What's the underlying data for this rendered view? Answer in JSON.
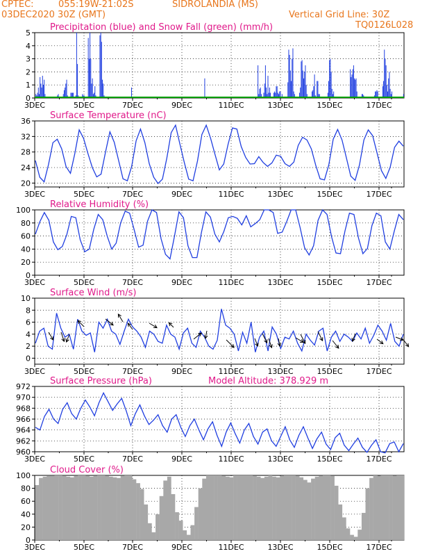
{
  "header": {
    "source": "CPTEC:",
    "coords": "055:19W-21:02S",
    "location": "SIDROLANDIA (MS)",
    "run": "03DEC2020 30Z (GMT)",
    "vgrid": "Vertical Grid Line: 30Z",
    "code": "TQ0126L028"
  },
  "colors": {
    "header": "#e8761c",
    "title": "#e0198a",
    "line": "#1f3ee0",
    "snow": "#00a000",
    "cloud": "#a8a8a8",
    "grid": "#000000"
  },
  "chart_data": [
    {
      "id": "precip",
      "type": "bar",
      "title": "Precipitation (blue) and Snow Fall (green) (mm/h)",
      "ylim": [
        0,
        5
      ],
      "yticks": [
        0,
        1,
        2,
        3,
        4,
        5
      ],
      "xlabels": [
        "3DEC",
        "5DEC",
        "7DEC",
        "9DEC",
        "11DEC",
        "13DEC",
        "15DEC",
        "17DEC"
      ],
      "snow": 0,
      "values": [
        0,
        0.3,
        0.2,
        0.4,
        0.8,
        0.3,
        1.6,
        1.1,
        0.8,
        1.7,
        1.0,
        1.4,
        0.3,
        0,
        0,
        0,
        0,
        0,
        0,
        0,
        0,
        0,
        0,
        0,
        0,
        0,
        0,
        0.2,
        0.3,
        0,
        0,
        0.1,
        0,
        0,
        0.3,
        0.6,
        0.8,
        1.1,
        1.4,
        0.2,
        0.1,
        0,
        0.1,
        0.4,
        0.4,
        0.4,
        0.4,
        0.1,
        0.1,
        0.2,
        5.0,
        2.6,
        0.2,
        0,
        0,
        0,
        0,
        0.3,
        0.2,
        0.2,
        0,
        0,
        0,
        0,
        4.6,
        3.0,
        5.0,
        3.0,
        1.1,
        1.5,
        0.3,
        0.4,
        0.9,
        0.2,
        0,
        0,
        0,
        0,
        4.8,
        5.0,
        4.3,
        1.4,
        1.1,
        0.2,
        0,
        0,
        0,
        0,
        0,
        0,
        0,
        0,
        0,
        0,
        0,
        0,
        0,
        0,
        0,
        0,
        0,
        0,
        0,
        0,
        0,
        0,
        0,
        0,
        0,
        0,
        0,
        0,
        0,
        0,
        0,
        0,
        0.8,
        0,
        0,
        0,
        0,
        0,
        0,
        0,
        0,
        0,
        0,
        0,
        0,
        0,
        0,
        0,
        0,
        0,
        0,
        0,
        0,
        0,
        0,
        0,
        0,
        0,
        0,
        0,
        0,
        0,
        0,
        0,
        0,
        0,
        0,
        0,
        0,
        0,
        0,
        0,
        0,
        0,
        0,
        0,
        0,
        0,
        0,
        0,
        0,
        0,
        0,
        0,
        0,
        0,
        0,
        0,
        0,
        0,
        0,
        0,
        0,
        0,
        0,
        0,
        0,
        0,
        0,
        0,
        0,
        0,
        0,
        0,
        0,
        0,
        0,
        0,
        0,
        0,
        0,
        0,
        0,
        0,
        0,
        0,
        0,
        0,
        0,
        0,
        1.5,
        0,
        0,
        0,
        0,
        0,
        0,
        0,
        0,
        0,
        0,
        0,
        0,
        0,
        0,
        0,
        0,
        0,
        0,
        0,
        0,
        0,
        0,
        0,
        0,
        0,
        0,
        0,
        0,
        0,
        0,
        0,
        0,
        0,
        0,
        0,
        0,
        0,
        0,
        0,
        0,
        0,
        0,
        0,
        0,
        0,
        0,
        0,
        0,
        0,
        0,
        0,
        0,
        0,
        0,
        0,
        0,
        0,
        0,
        0,
        0,
        0,
        0,
        0,
        2.5,
        0.3,
        0.7,
        0.8,
        0.3,
        0,
        0,
        0.4,
        1.1,
        2.5,
        0.8,
        0.3,
        1.7,
        0.4,
        0.8,
        0.4,
        0.1,
        0,
        0,
        0.4,
        0.5,
        0.4,
        0.9,
        0.9,
        0.4,
        0.3,
        0.5,
        0.5,
        0,
        0.3,
        0,
        0,
        0,
        0,
        0,
        0,
        1.2,
        3.7,
        3.3,
        2.1,
        1.3,
        3.0,
        3.8,
        0.5,
        0.3,
        0.1,
        0,
        0,
        0,
        0,
        0.4,
        0.8,
        2.8,
        2.9,
        2.1,
        1.5,
        2.0,
        2.5,
        1.0,
        0.3,
        0.1,
        0,
        0,
        0,
        0,
        0.5,
        0.6,
        0.9,
        1.8,
        0.2,
        0.1,
        1.3,
        1.3,
        0.3,
        0.3,
        0.1,
        0,
        0,
        0,
        0,
        0,
        0,
        0,
        0,
        0.4,
        1.3,
        2.9,
        3.0,
        2.0,
        0.7,
        0.3,
        0.5,
        0.1,
        0,
        0,
        0,
        0,
        0,
        0,
        0,
        0,
        0,
        0,
        0,
        0,
        0,
        0,
        0,
        0,
        0,
        0,
        2.2,
        1.6,
        1.8,
        2.2,
        2.5,
        1.5,
        1.4,
        1.5,
        0.5,
        0,
        0,
        0,
        0,
        0,
        0.3,
        0.3,
        0.2,
        0.1,
        0,
        0,
        0,
        0,
        0.1,
        0,
        0,
        0,
        0,
        0,
        0,
        0.2,
        0.5,
        0.5,
        0.6,
        0.5,
        0.1,
        0,
        0,
        0,
        0.1,
        0.9,
        1.3,
        3.7,
        3.0,
        2.5,
        1.0,
        0.5,
        1.5,
        2.0,
        0.7,
        0.3,
        0.5,
        0.1,
        0,
        0,
        0,
        0,
        0,
        0,
        0,
        0,
        0,
        0,
        0,
        0,
        0.3
      ]
    },
    {
      "id": "temp",
      "type": "line",
      "title": "Surface Temperature (nC)",
      "ylim": [
        19,
        36
      ],
      "yticks": [
        20,
        24,
        28,
        32,
        36
      ],
      "xlabels": [
        "3DEC",
        "5DEC",
        "7DEC",
        "9DEC",
        "11DEC",
        "13DEC",
        "15DEC",
        "17DEC"
      ],
      "values": [
        25.8,
        21.5,
        20.3,
        24.8,
        30.4,
        31.3,
        28.8,
        24.2,
        22.5,
        27.6,
        33.7,
        31.5,
        27.6,
        24.0,
        21.6,
        22.3,
        28.0,
        33.2,
        30.5,
        25.8,
        21.1,
        20.6,
        24.4,
        30.9,
        33.9,
        30.4,
        25.0,
        21.5,
        19.9,
        21.0,
        26.4,
        33.0,
        34.9,
        30.0,
        25.3,
        21.0,
        20.6,
        25.7,
        32.5,
        34.9,
        31.5,
        27.4,
        23.4,
        24.9,
        30.0,
        34.2,
        33.9,
        29.4,
        26.6,
        24.9,
        25.0,
        26.8,
        25.3,
        24.3,
        25.2,
        27.2,
        26.9,
        25.0,
        24.3,
        25.4,
        29.7,
        31.8,
        31.1,
        28.8,
        24.6,
        21.1,
        20.8,
        24.7,
        31.3,
        33.8,
        31.1,
        26.5,
        21.8,
        20.7,
        24.7,
        31.1,
        33.7,
        32.2,
        27.8,
        23.2,
        21.2,
        24.1,
        29.2,
        30.8,
        29.5
      ]
    },
    {
      "id": "rh",
      "type": "line",
      "title": "Relative Humidity (%)",
      "ylim": [
        0,
        100
      ],
      "yticks": [
        0,
        20,
        40,
        60,
        80,
        100
      ],
      "xlabels": [
        "3DEC",
        "5DEC",
        "7DEC",
        "9DEC",
        "11DEC",
        "13DEC",
        "15DEC",
        "17DEC"
      ],
      "values": [
        63,
        82,
        96,
        84,
        51,
        39,
        44,
        62,
        90,
        88,
        54,
        36,
        40,
        70,
        93,
        85,
        60,
        40,
        49,
        80,
        98,
        95,
        70,
        43,
        46,
        83,
        100,
        96,
        56,
        32,
        25,
        60,
        97,
        88,
        45,
        27,
        27,
        65,
        97,
        89,
        63,
        51,
        67,
        88,
        90,
        87,
        77,
        91,
        74,
        79,
        85,
        100,
        100,
        96,
        64,
        66,
        82,
        100,
        100,
        73,
        42,
        31,
        45,
        84,
        100,
        93,
        59,
        34,
        33,
        68,
        95,
        93,
        57,
        33,
        41,
        76,
        95,
        91,
        51,
        40,
        68,
        93,
        85
      ]
    },
    {
      "id": "wind",
      "type": "line",
      "title": "Surface Wind (m/s)",
      "ylim": [
        -1,
        10
      ],
      "yticks": [
        0,
        2,
        4,
        6,
        8,
        10
      ],
      "xlabels": [
        "3DEC",
        "5DEC",
        "7DEC",
        "9DEC",
        "11DEC",
        "13DEC",
        "15DEC",
        "17DEC"
      ],
      "values": [
        2.5,
        4.5,
        5.0,
        2.0,
        1.5,
        7.5,
        5.0,
        3.5,
        4.0,
        1.5,
        6.5,
        4.5,
        3.8,
        4.2,
        1.0,
        6.0,
        5.0,
        6.5,
        4.5,
        4.0,
        2.3,
        4.5,
        6.5,
        5.2,
        4.5,
        3.5,
        1.8,
        4.5,
        4.0,
        2.8,
        2.5,
        5.5,
        4.0,
        3.5,
        1.5,
        4.2,
        5.0,
        2.5,
        1.8,
        4.5,
        3.5,
        2.0,
        1.5,
        3.0,
        8.2,
        5.5,
        5.0,
        4.0,
        1.2,
        4.3,
        2.5,
        6.0,
        1.0,
        3.5,
        4.5,
        1.2,
        5.2,
        4.0,
        1.6,
        3.5,
        3.2,
        4.5,
        2.5,
        1.2,
        4.0,
        3.0,
        2.2,
        4.5,
        5.0,
        1.2,
        3.5,
        4.5,
        2.8,
        4.0,
        3.5,
        2.8,
        4.2,
        3.2,
        5.0,
        2.5,
        3.8,
        5.5,
        4.5,
        3.0,
        5.8,
        2.8,
        2.0,
        4.0
      ]
    },
    {
      "id": "pres",
      "type": "line",
      "title": "Surface Pressure (hPa)",
      "annotation": "Model Altitude: 378.929  m",
      "ylim": [
        960,
        972
      ],
      "yticks": [
        960,
        962,
        964,
        966,
        968,
        970,
        972
      ],
      "xlabels": [
        "3DEC",
        "5DEC",
        "7DEC",
        "9DEC",
        "11DEC",
        "13DEC",
        "15DEC",
        "17DEC"
      ],
      "values": [
        964.5,
        964.0,
        966.5,
        967.8,
        966.0,
        965.2,
        967.8,
        969.0,
        967.0,
        966.0,
        968.0,
        969.5,
        968.2,
        966.6,
        969.0,
        970.8,
        969.2,
        967.6,
        968.8,
        969.8,
        967.5,
        964.8,
        967.0,
        968.6,
        966.6,
        965.0,
        965.8,
        966.8,
        964.8,
        963.6,
        966.0,
        966.8,
        964.5,
        962.8,
        964.8,
        966.0,
        964.0,
        962.2,
        964.2,
        965.5,
        963.0,
        961.0,
        963.6,
        965.3,
        963.3,
        961.6,
        964.0,
        965.2,
        962.8,
        961.4,
        963.6,
        964.2,
        962.0,
        961.0,
        962.8,
        964.6,
        962.2,
        960.8,
        963.0,
        964.6,
        962.5,
        960.6,
        962.4,
        963.6,
        961.4,
        960.4,
        962.6,
        963.4,
        961.2,
        960.2,
        961.4,
        962.5,
        960.8,
        959.9,
        961.2,
        962.2,
        960.0,
        959.8,
        961.5,
        961.8,
        960.0,
        961.5
      ]
    },
    {
      "id": "cloud",
      "type": "bar",
      "title": "Cloud Cover (%)",
      "ylim": [
        0,
        100
      ],
      "yticks": [
        0,
        20,
        40,
        60,
        80,
        100
      ],
      "xlabels": [
        "3DEC",
        "5DEC",
        "7DEC",
        "9DEC",
        "11DEC",
        "13DEC",
        "15DEC",
        "17DEC"
      ],
      "values": [
        85,
        96,
        98,
        99,
        99,
        100,
        100,
        99,
        98,
        97,
        99,
        100,
        100,
        99,
        98,
        99,
        100,
        100,
        99,
        98,
        97,
        96,
        99,
        100,
        100,
        94,
        88,
        79,
        55,
        26,
        12,
        40,
        68,
        92,
        98,
        71,
        43,
        30,
        15,
        8,
        23,
        51,
        80,
        95,
        100,
        100,
        100,
        100,
        99,
        98,
        97,
        100,
        100,
        100,
        100,
        100,
        99,
        98,
        96,
        98,
        100,
        98,
        97,
        99,
        100,
        100,
        100,
        99,
        97,
        93,
        89,
        95,
        98,
        99,
        100,
        100,
        99,
        84,
        55,
        35,
        18,
        8,
        5,
        16,
        42,
        80,
        96,
        100,
        99,
        100,
        100,
        100,
        99,
        100,
        100
      ]
    }
  ]
}
